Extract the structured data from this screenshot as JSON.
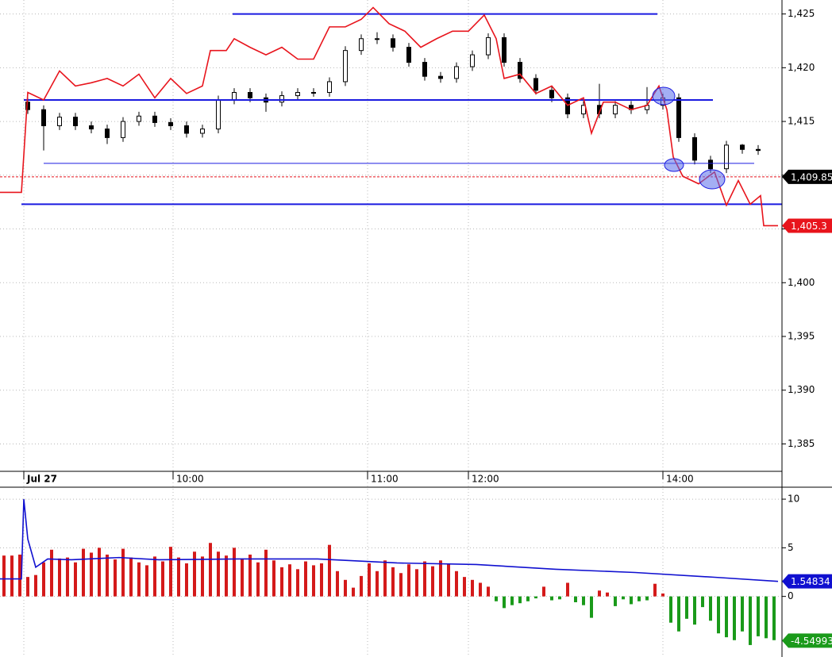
{
  "chart_data": [
    {
      "type": "candlestick",
      "x": [
        7,
        11,
        15,
        19,
        23,
        27,
        31,
        35,
        39,
        43,
        47,
        51,
        55,
        59,
        63,
        67,
        71,
        75,
        79,
        83,
        87,
        91,
        95,
        99,
        103,
        107,
        111,
        115,
        119,
        123,
        127,
        131,
        135,
        139,
        143,
        147,
        151,
        155,
        159,
        163,
        167,
        171,
        175,
        179,
        183,
        187,
        191
      ],
      "open": [
        1416.8,
        1416.1,
        1414.6,
        1415.4,
        1414.6,
        1414.3,
        1413.5,
        1415.0,
        1415.5,
        1414.9,
        1414.6,
        1413.9,
        1414.3,
        1417.0,
        1417.7,
        1417.2,
        1416.8,
        1417.4,
        1417.7,
        1417.7,
        1418.7,
        1421.6,
        1422.7,
        1422.7,
        1421.9,
        1420.5,
        1419.2,
        1419.0,
        1420.1,
        1421.2,
        1422.8,
        1420.5,
        1419.0,
        1417.9,
        1417.2,
        1415.7,
        1416.5,
        1415.7,
        1416.5,
        1416.1,
        1416.5,
        1417.2,
        1413.5,
        1411.4,
        1410.6,
        1412.8,
        1412.4
      ],
      "high": [
        1417.2,
        1416.5,
        1415.8,
        1415.8,
        1415.0,
        1414.7,
        1415.4,
        1415.9,
        1415.9,
        1415.3,
        1415.0,
        1414.7,
        1417.4,
        1418.1,
        1418.1,
        1417.6,
        1417.8,
        1418.1,
        1418.1,
        1419.1,
        1422.0,
        1423.1,
        1423.3,
        1423.1,
        1422.3,
        1420.9,
        1419.6,
        1420.5,
        1421.6,
        1423.2,
        1423.2,
        1420.9,
        1419.4,
        1418.3,
        1417.6,
        1416.9,
        1418.5,
        1416.9,
        1416.9,
        1418.2,
        1417.6,
        1417.6,
        1413.9,
        1411.8,
        1413.2,
        1412.9,
        1412.8
      ],
      "low": [
        1415.7,
        1412.3,
        1414.2,
        1414.2,
        1413.9,
        1412.9,
        1413.1,
        1414.6,
        1414.5,
        1414.2,
        1413.5,
        1413.5,
        1413.9,
        1416.6,
        1416.8,
        1415.9,
        1416.4,
        1417.0,
        1417.3,
        1417.3,
        1418.3,
        1421.2,
        1422.2,
        1421.5,
        1420.1,
        1418.8,
        1418.6,
        1418.6,
        1419.7,
        1420.8,
        1420.1,
        1418.6,
        1417.5,
        1416.8,
        1415.3,
        1415.3,
        1415.3,
        1415.3,
        1415.7,
        1415.7,
        1416.1,
        1413.1,
        1411.0,
        1410.2,
        1410.2,
        1412.0,
        1411.9
      ],
      "close": [
        1416.1,
        1414.6,
        1415.4,
        1414.6,
        1414.3,
        1413.5,
        1415.0,
        1415.5,
        1414.9,
        1414.6,
        1413.9,
        1414.3,
        1417.0,
        1417.7,
        1417.2,
        1416.8,
        1417.4,
        1417.7,
        1417.7,
        1418.7,
        1421.6,
        1422.7,
        1422.7,
        1421.9,
        1420.5,
        1419.2,
        1419.0,
        1420.1,
        1421.2,
        1422.8,
        1420.5,
        1419.0,
        1417.9,
        1417.2,
        1415.7,
        1416.5,
        1415.7,
        1416.5,
        1416.1,
        1416.5,
        1417.2,
        1413.5,
        1411.4,
        1410.6,
        1412.8,
        1412.4,
        1412.3
      ],
      "color": "#000000",
      "xlim": [
        0,
        197
      ],
      "ylim": [
        1382.45,
        1426.3
      ],
      "yticks": [
        {
          "value": 1385,
          "label": "1,385"
        },
        {
          "value": 1390,
          "label": "1,390"
        },
        {
          "value": 1395,
          "label": "1,395"
        },
        {
          "value": 1400,
          "label": "1,400"
        },
        {
          "value": 1405,
          "label": "1,405"
        },
        {
          "value": 1410,
          "label": "1,410"
        },
        {
          "value": 1415,
          "label": "1,415"
        },
        {
          "value": 1420,
          "label": "1,420"
        },
        {
          "value": 1425,
          "label": "1,425"
        }
      ],
      "xticks": [
        {
          "value": 6,
          "label": "Jul 27"
        },
        {
          "value": 43.6,
          "label": "10:00"
        },
        {
          "value": 92.6,
          "label": "11:00"
        },
        {
          "value": 118,
          "label": "12:00"
        },
        {
          "value": 167,
          "label": "14:00"
        }
      ],
      "grid": true,
      "overlay": {
        "type": "line",
        "color": "#e8141c",
        "x": [
          0,
          5.4,
          7,
          11,
          15,
          19,
          23,
          27,
          31,
          35,
          39,
          43,
          47,
          51,
          53,
          57,
          59,
          63,
          67,
          71,
          75,
          79,
          83,
          87,
          91,
          94,
          98,
          102,
          106,
          110,
          114,
          118,
          122,
          125,
          127,
          131,
          135,
          139,
          143,
          147,
          149,
          152,
          155,
          159,
          163,
          166,
          168,
          169.6,
          172,
          176,
          180,
          183,
          186,
          189,
          191.6,
          192.4,
          196
        ],
        "values": [
          1408.4,
          1408.4,
          1417.7,
          1417.0,
          1419.7,
          1418.3,
          1418.6,
          1419.0,
          1418.3,
          1419.4,
          1417.2,
          1419.0,
          1417.6,
          1418.3,
          1421.6,
          1421.6,
          1422.7,
          1421.9,
          1421.2,
          1421.9,
          1420.8,
          1420.8,
          1423.8,
          1423.8,
          1424.5,
          1425.6,
          1424.1,
          1423.4,
          1421.9,
          1422.7,
          1423.4,
          1423.4,
          1424.9,
          1422.7,
          1419.0,
          1419.4,
          1417.6,
          1418.3,
          1416.5,
          1417.2,
          1413.9,
          1416.8,
          1416.8,
          1416.1,
          1416.5,
          1418.3,
          1416.1,
          1411.7,
          1409.9,
          1409.2,
          1410.3,
          1407.2,
          1409.5,
          1407.3,
          1408.1,
          1405.3,
          1405.3
        ],
        "last": {
          "value": 1405.3,
          "label": "1,405.3"
        }
      },
      "hlines": [
        {
          "value": 1425.0,
          "x": [
            58.6,
            165.6
          ],
          "color": "#1a1ae0",
          "width": 2
        },
        {
          "value": 1417.0,
          "x": [
            6,
            179.6
          ],
          "color": "#1a1ae0",
          "width": 2
        },
        {
          "value": 1411.1,
          "x": [
            11,
            190
          ],
          "color": "#1a1ae0",
          "width": 1
        },
        {
          "value": 1407.3,
          "x": [
            5.4,
            197
          ],
          "color": "#1a1ae0",
          "width": 2
        }
      ],
      "last_price": {
        "value": 1409.85,
        "label": "1,409.85"
      }
    },
    {
      "type": "bar",
      "x": [
        1,
        3,
        5,
        7,
        9,
        11,
        13,
        15,
        17,
        19,
        21,
        23,
        25,
        27,
        29,
        31,
        33,
        35,
        37,
        39,
        41,
        43,
        45,
        47,
        49,
        51,
        53,
        55,
        57,
        59,
        61,
        63,
        65,
        67,
        69,
        71,
        73,
        75,
        77,
        79,
        81,
        83,
        85,
        87,
        89,
        91,
        93,
        95,
        97,
        99,
        101,
        103,
        105,
        107,
        109,
        111,
        113,
        115,
        117,
        119,
        121,
        123,
        125,
        127,
        129,
        131,
        133,
        135,
        137,
        139,
        141,
        143,
        145,
        147,
        149,
        151,
        153,
        155,
        157,
        159,
        161,
        163,
        165,
        167,
        169,
        171,
        173,
        175,
        177,
        179,
        181,
        183,
        185,
        187,
        189,
        191,
        193,
        195
      ],
      "values": [
        4.2,
        4.2,
        4.3,
        2.0,
        2.2,
        3.5,
        4.8,
        3.9,
        4.0,
        3.5,
        4.9,
        4.5,
        5.0,
        4.3,
        3.8,
        4.9,
        4.0,
        3.5,
        3.2,
        4.1,
        3.6,
        5.1,
        4.0,
        3.4,
        4.6,
        4.1,
        5.5,
        4.6,
        4.2,
        5.0,
        3.9,
        4.3,
        3.5,
        4.8,
        3.7,
        3.0,
        3.3,
        2.8,
        3.6,
        3.2,
        3.4,
        5.3,
        2.6,
        1.7,
        0.9,
        2.1,
        3.4,
        2.6,
        3.7,
        3.0,
        2.4,
        3.3,
        2.8,
        3.6,
        3.1,
        3.7,
        3.3,
        2.6,
        2.0,
        1.7,
        1.4,
        1.0,
        -0.5,
        -1.2,
        -0.9,
        -0.7,
        -0.5,
        -0.2,
        1.0,
        -0.4,
        -0.3,
        1.4,
        -0.6,
        -0.9,
        -2.2,
        0.6,
        0.4,
        -1.0,
        -0.3,
        -0.8,
        -0.5,
        -0.4,
        1.3,
        0.3,
        -2.7,
        -3.6,
        -2.3,
        -2.9,
        -1.1,
        -2.5,
        -3.8,
        -4.2,
        -4.5,
        -3.6,
        -5.0,
        -4.1,
        -4.3,
        -4.5
      ],
      "positive_color": "#d41a1a",
      "negative_color": "#1a9a1a",
      "xlim": [
        0,
        197
      ],
      "ylim": [
        -6.23,
        11.23
      ],
      "yticks": [
        0,
        5,
        10
      ],
      "grid": true,
      "overlay": {
        "type": "line",
        "color": "#1010d0",
        "x": [
          0,
          5.4,
          6,
          7,
          9,
          12,
          18,
          30,
          40,
          60,
          80,
          100,
          120,
          140,
          160,
          180,
          196
        ],
        "values": [
          1.8,
          1.8,
          10.0,
          5.9,
          3.0,
          3.85,
          3.77,
          4.0,
          3.77,
          3.85,
          3.85,
          3.44,
          3.28,
          2.79,
          2.46,
          1.97,
          1.55
        ],
        "last": 1.54834
      },
      "last_value": -4.54993
    }
  ]
}
